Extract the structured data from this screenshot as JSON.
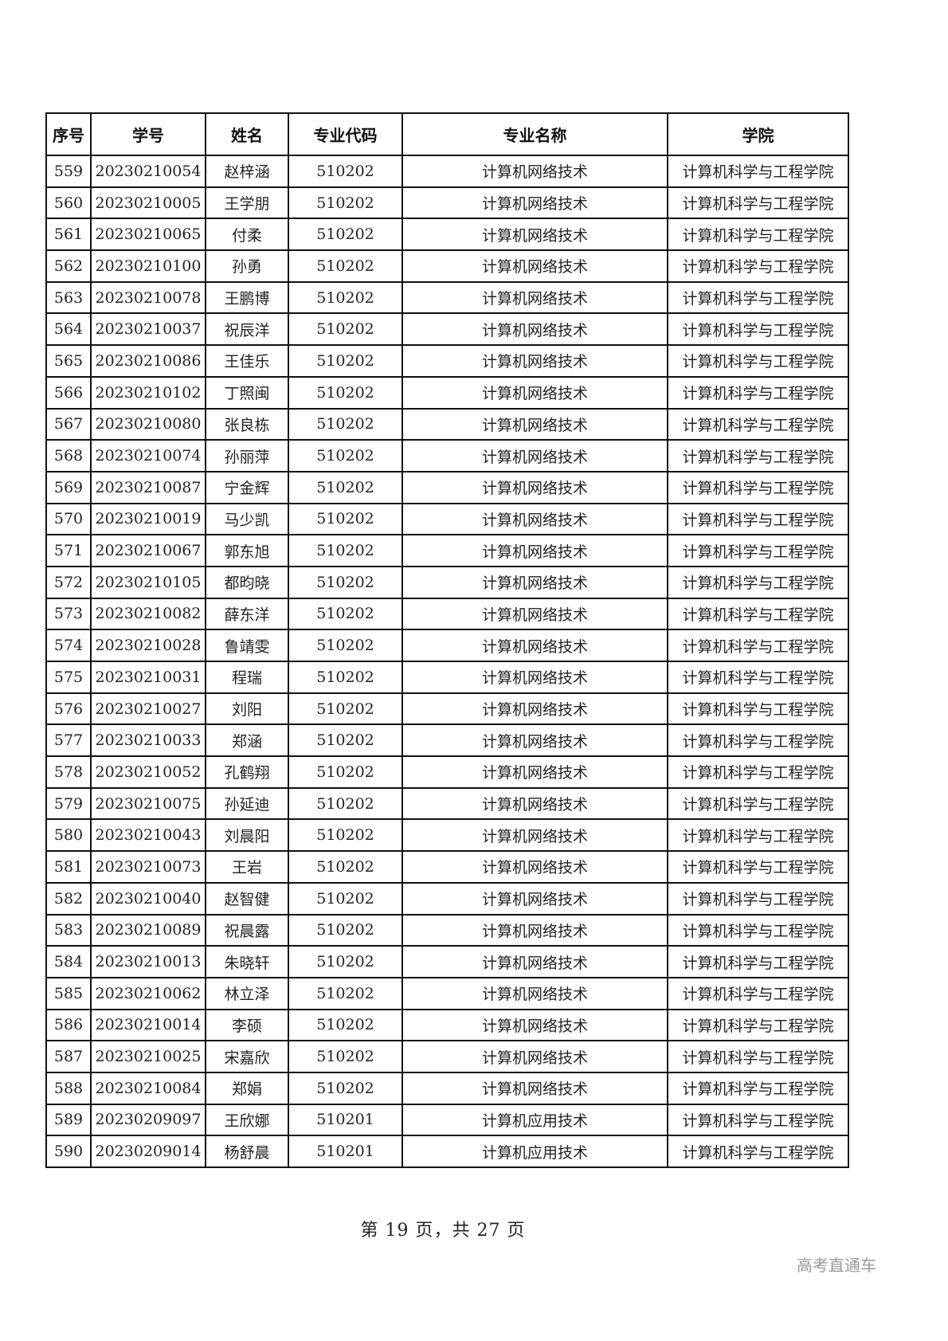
{
  "table": {
    "headers": [
      "序号",
      "学号",
      "姓名",
      "专业代码",
      "专业名称",
      "学院"
    ],
    "rows": [
      [
        "559",
        "20230210054",
        "赵梓涵",
        "510202",
        "计算机网络技术",
        "计算机科学与工程学院"
      ],
      [
        "560",
        "20230210005",
        "王学朋",
        "510202",
        "计算机网络技术",
        "计算机科学与工程学院"
      ],
      [
        "561",
        "20230210065",
        "付柔",
        "510202",
        "计算机网络技术",
        "计算机科学与工程学院"
      ],
      [
        "562",
        "20230210100",
        "孙勇",
        "510202",
        "计算机网络技术",
        "计算机科学与工程学院"
      ],
      [
        "563",
        "20230210078",
        "王鹏博",
        "510202",
        "计算机网络技术",
        "计算机科学与工程学院"
      ],
      [
        "564",
        "20230210037",
        "祝辰洋",
        "510202",
        "计算机网络技术",
        "计算机科学与工程学院"
      ],
      [
        "565",
        "20230210086",
        "王佳乐",
        "510202",
        "计算机网络技术",
        "计算机科学与工程学院"
      ],
      [
        "566",
        "20230210102",
        "丁照闽",
        "510202",
        "计算机网络技术",
        "计算机科学与工程学院"
      ],
      [
        "567",
        "20230210080",
        "张良栋",
        "510202",
        "计算机网络技术",
        "计算机科学与工程学院"
      ],
      [
        "568",
        "20230210074",
        "孙丽萍",
        "510202",
        "计算机网络技术",
        "计算机科学与工程学院"
      ],
      [
        "569",
        "20230210087",
        "宁金辉",
        "510202",
        "计算机网络技术",
        "计算机科学与工程学院"
      ],
      [
        "570",
        "20230210019",
        "马少凯",
        "510202",
        "计算机网络技术",
        "计算机科学与工程学院"
      ],
      [
        "571",
        "20230210067",
        "郭东旭",
        "510202",
        "计算机网络技术",
        "计算机科学与工程学院"
      ],
      [
        "572",
        "20230210105",
        "都昀晓",
        "510202",
        "计算机网络技术",
        "计算机科学与工程学院"
      ],
      [
        "573",
        "20230210082",
        "薛东洋",
        "510202",
        "计算机网络技术",
        "计算机科学与工程学院"
      ],
      [
        "574",
        "20230210028",
        "鲁靖雯",
        "510202",
        "计算机网络技术",
        "计算机科学与工程学院"
      ],
      [
        "575",
        "20230210031",
        "程瑞",
        "510202",
        "计算机网络技术",
        "计算机科学与工程学院"
      ],
      [
        "576",
        "20230210027",
        "刘阳",
        "510202",
        "计算机网络技术",
        "计算机科学与工程学院"
      ],
      [
        "577",
        "20230210033",
        "郑涵",
        "510202",
        "计算机网络技术",
        "计算机科学与工程学院"
      ],
      [
        "578",
        "20230210052",
        "孔鹤翔",
        "510202",
        "计算机网络技术",
        "计算机科学与工程学院"
      ],
      [
        "579",
        "20230210075",
        "孙延迪",
        "510202",
        "计算机网络技术",
        "计算机科学与工程学院"
      ],
      [
        "580",
        "20230210043",
        "刘晨阳",
        "510202",
        "计算机网络技术",
        "计算机科学与工程学院"
      ],
      [
        "581",
        "20230210073",
        "王岩",
        "510202",
        "计算机网络技术",
        "计算机科学与工程学院"
      ],
      [
        "582",
        "20230210040",
        "赵智健",
        "510202",
        "计算机网络技术",
        "计算机科学与工程学院"
      ],
      [
        "583",
        "20230210089",
        "祝晨露",
        "510202",
        "计算机网络技术",
        "计算机科学与工程学院"
      ],
      [
        "584",
        "20230210013",
        "朱晓轩",
        "510202",
        "计算机网络技术",
        "计算机科学与工程学院"
      ],
      [
        "585",
        "20230210062",
        "林立泽",
        "510202",
        "计算机网络技术",
        "计算机科学与工程学院"
      ],
      [
        "586",
        "20230210014",
        "李硕",
        "510202",
        "计算机网络技术",
        "计算机科学与工程学院"
      ],
      [
        "587",
        "20230210025",
        "宋嘉欣",
        "510202",
        "计算机网络技术",
        "计算机科学与工程学院"
      ],
      [
        "588",
        "20230210084",
        "郑娟",
        "510202",
        "计算机网络技术",
        "计算机科学与工程学院"
      ],
      [
        "589",
        "20230209097",
        "王欣娜",
        "510201",
        "计算机应用技术",
        "计算机科学与工程学院"
      ],
      [
        "590",
        "20230209014",
        "杨舒晨",
        "510201",
        "计算机应用技术",
        "计算机科学与工程学院"
      ]
    ]
  },
  "footer": {
    "prefix": "第",
    "page": "19",
    "mid": "页，共",
    "total": "27",
    "suffix": "页"
  },
  "watermark": "高考直通车"
}
